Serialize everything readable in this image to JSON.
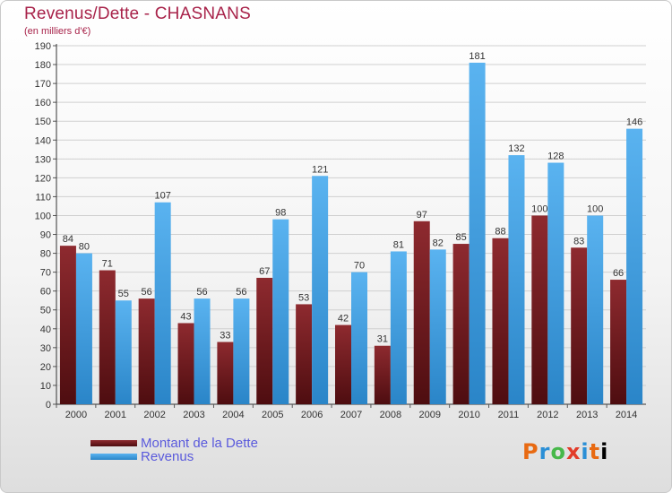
{
  "title": "Revenus/Dette - CHASNANS",
  "subtitle": "(en milliers d'€)",
  "logo_text": "Proxiti",
  "colors": {
    "title": "#a8234a",
    "dette": "#7a1a1f",
    "revenus": "#3a9ee0",
    "grid": "#d0d0d0",
    "legend_text": "#5a5adc"
  },
  "chart_data": {
    "type": "bar",
    "title": "Revenus/Dette - CHASNANS",
    "subtitle": "(en milliers d'€)",
    "categories": [
      "2000",
      "2001",
      "2002",
      "2003",
      "2004",
      "2005",
      "2006",
      "2007",
      "2008",
      "2009",
      "2010",
      "2011",
      "2012",
      "2013",
      "2014"
    ],
    "series": [
      {
        "name": "Montant de la Dette",
        "values": [
          84,
          71,
          56,
          43,
          33,
          67,
          53,
          42,
          31,
          97,
          85,
          88,
          100,
          83,
          66
        ]
      },
      {
        "name": "Revenus",
        "values": [
          80,
          55,
          107,
          56,
          56,
          98,
          121,
          70,
          81,
          82,
          181,
          132,
          128,
          100,
          146
        ]
      }
    ],
    "ylim": [
      0,
      190
    ],
    "ytick_step": 10,
    "grid": true,
    "legend_position": "bottom-left"
  }
}
